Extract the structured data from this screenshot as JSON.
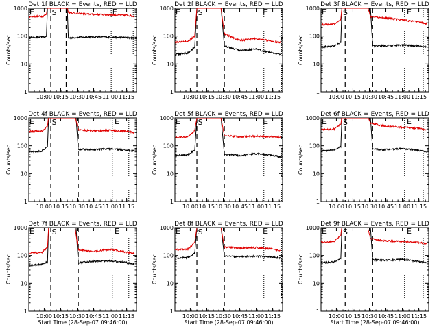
{
  "figure": {
    "background": "#ffffff",
    "colors": {
      "events": "#000000",
      "lld": "#e00000",
      "axis": "#000000"
    },
    "common": {
      "ylabel": "Counts/sec",
      "xlabel": "Start Time (28-Sep-07 09:46:00)",
      "ylog": true,
      "ylim": [
        1,
        1000
      ],
      "yticks": [
        1,
        10,
        100,
        1000
      ],
      "xticks": [
        "10:00",
        "10:15",
        "10:30",
        "10:45",
        "11:00",
        "11:15"
      ],
      "marker_s": "S",
      "marker_e": "E"
    }
  },
  "chart_data": [
    {
      "type": "line",
      "title": "Det 1f BLACK = Events, RED = LLD",
      "xlim": [
        "09:46",
        "11:24"
      ],
      "xlabel": "",
      "ylabel": "Counts/sec",
      "series": [
        {
          "name": "Events",
          "color": "#000000",
          "points": [
            [
              "09:46",
              90
            ],
            [
              "09:58",
              92
            ],
            [
              "10:02",
              95
            ],
            [
              "10:03",
              1200
            ],
            [
              "10:21",
              1200
            ],
            [
              "10:22",
              85
            ],
            [
              "10:30",
              90
            ],
            [
              "10:45",
              95
            ],
            [
              "11:00",
              92
            ],
            [
              "11:15",
              88
            ],
            [
              "11:22",
              86
            ]
          ]
        },
        {
          "name": "LLD",
          "color": "#e00000",
          "points": [
            [
              "09:46",
              500
            ],
            [
              "09:58",
              510
            ],
            [
              "10:02",
              600
            ],
            [
              "10:03",
              1200
            ],
            [
              "10:21",
              1200
            ],
            [
              "10:22",
              700
            ],
            [
              "10:30",
              650
            ],
            [
              "10:45",
              600
            ],
            [
              "11:00",
              580
            ],
            [
              "11:15",
              560
            ],
            [
              "11:22",
              520
            ]
          ]
        }
      ],
      "dashed_lines_at": [
        "10:06",
        "10:20"
      ],
      "dotted_lines_at": [
        "11:01",
        "11:21"
      ],
      "s_label_at": "10:07",
      "e_label_at": "11:02"
    },
    {
      "type": "line",
      "title": "Det 2f BLACK = Events, RED = LLD",
      "xlim": [
        "09:46",
        "11:24"
      ],
      "xlabel": "",
      "ylabel": "Counts/sec",
      "series": [
        {
          "name": "Events",
          "color": "#000000",
          "points": [
            [
              "09:46",
              22
            ],
            [
              "09:58",
              25
            ],
            [
              "10:04",
              40
            ],
            [
              "10:06",
              1200
            ],
            [
              "10:28",
              1200
            ],
            [
              "10:31",
              45
            ],
            [
              "10:45",
              30
            ],
            [
              "11:00",
              34
            ],
            [
              "11:15",
              25
            ],
            [
              "11:22",
              22
            ]
          ]
        },
        {
          "name": "LLD",
          "color": "#e00000",
          "points": [
            [
              "09:46",
              60
            ],
            [
              "09:58",
              65
            ],
            [
              "10:04",
              100
            ],
            [
              "10:06",
              1200
            ],
            [
              "10:28",
              1200
            ],
            [
              "10:31",
              120
            ],
            [
              "10:45",
              70
            ],
            [
              "11:00",
              80
            ],
            [
              "11:15",
              65
            ],
            [
              "11:22",
              58
            ]
          ]
        }
      ],
      "dashed_lines_at": [
        "10:06",
        "10:31"
      ],
      "dotted_lines_at": [
        "11:07",
        "11:23"
      ],
      "s_label_at": "10:07",
      "e_label_at": "11:06"
    },
    {
      "type": "line",
      "title": "Det 3f BLACK = Events, RED = LLD",
      "xlim": [
        "09:46",
        "11:24"
      ],
      "xlabel": "",
      "ylabel": "Counts/sec",
      "series": [
        {
          "name": "Events",
          "color": "#000000",
          "points": [
            [
              "09:46",
              40
            ],
            [
              "09:58",
              45
            ],
            [
              "10:04",
              60
            ],
            [
              "10:05",
              1200
            ],
            [
              "10:31",
              1200
            ],
            [
              "10:33",
              45
            ],
            [
              "10:45",
              45
            ],
            [
              "11:00",
              48
            ],
            [
              "11:15",
              44
            ],
            [
              "11:22",
              40
            ]
          ]
        },
        {
          "name": "LLD",
          "color": "#e00000",
          "points": [
            [
              "09:46",
              260
            ],
            [
              "09:58",
              270
            ],
            [
              "10:04",
              400
            ],
            [
              "10:05",
              1200
            ],
            [
              "10:28",
              1200
            ],
            [
              "10:31",
              500
            ],
            [
              "10:45",
              450
            ],
            [
              "11:00",
              380
            ],
            [
              "11:15",
              320
            ],
            [
              "11:22",
              280
            ]
          ]
        }
      ],
      "dashed_lines_at": [
        "10:08",
        "10:33"
      ],
      "dotted_lines_at": [
        "11:02",
        "11:19"
      ],
      "s_label_at": "10:06",
      "e_label_at": "11:04"
    },
    {
      "type": "line",
      "title": "Det 4f BLACK = Events, RED = LLD",
      "xlim": [
        "09:46",
        "11:24"
      ],
      "xlabel": "",
      "ylabel": "Counts/sec",
      "series": [
        {
          "name": "Events",
          "color": "#000000",
          "points": [
            [
              "09:46",
              60
            ],
            [
              "09:58",
              65
            ],
            [
              "10:03",
              90
            ],
            [
              "10:04",
              1200
            ],
            [
              "10:29",
              1200
            ],
            [
              "10:31",
              75
            ],
            [
              "10:45",
              72
            ],
            [
              "11:00",
              78
            ],
            [
              "11:15",
              70
            ],
            [
              "11:22",
              65
            ]
          ]
        },
        {
          "name": "LLD",
          "color": "#e00000",
          "points": [
            [
              "09:46",
              330
            ],
            [
              "09:58",
              340
            ],
            [
              "10:03",
              500
            ],
            [
              "10:04",
              1200
            ],
            [
              "10:28",
              1200
            ],
            [
              "10:31",
              380
            ],
            [
              "10:45",
              340
            ],
            [
              "11:00",
              360
            ],
            [
              "11:15",
              330
            ],
            [
              "11:22",
              300
            ]
          ]
        }
      ],
      "dashed_lines_at": [
        "10:06",
        "10:31"
      ],
      "dotted_lines_at": [
        "11:02",
        "11:17"
      ],
      "s_label_at": "10:07",
      "e_label_at": "11:04"
    },
    {
      "type": "line",
      "title": "Det 5f BLACK = Events, RED = LLD",
      "xlim": [
        "09:46",
        "11:24"
      ],
      "xlabel": "",
      "ylabel": "Counts/sec",
      "series": [
        {
          "name": "Events",
          "color": "#000000",
          "points": [
            [
              "09:46",
              45
            ],
            [
              "09:58",
              48
            ],
            [
              "10:04",
              70
            ],
            [
              "10:06",
              1200
            ],
            [
              "10:28",
              1200
            ],
            [
              "10:31",
              50
            ],
            [
              "10:45",
              45
            ],
            [
              "11:00",
              52
            ],
            [
              "11:15",
              45
            ],
            [
              "11:22",
              40
            ]
          ]
        },
        {
          "name": "LLD",
          "color": "#e00000",
          "points": [
            [
              "09:46",
              200
            ],
            [
              "09:58",
              210
            ],
            [
              "10:04",
              350
            ],
            [
              "10:06",
              1200
            ],
            [
              "10:28",
              1200
            ],
            [
              "10:31",
              230
            ],
            [
              "10:45",
              210
            ],
            [
              "11:00",
              220
            ],
            [
              "11:15",
              210
            ],
            [
              "11:22",
              200
            ]
          ]
        }
      ],
      "dashed_lines_at": [
        "10:06",
        "10:31"
      ],
      "dotted_lines_at": [
        "11:07",
        "11:23"
      ],
      "s_label_at": "10:07",
      "e_label_at": "11:06"
    },
    {
      "type": "line",
      "title": "Det 6f BLACK = Events, RED = LLD",
      "xlim": [
        "09:46",
        "11:24"
      ],
      "xlabel": "",
      "ylabel": "Counts/sec",
      "series": [
        {
          "name": "Events",
          "color": "#000000",
          "points": [
            [
              "09:46",
              65
            ],
            [
              "09:58",
              70
            ],
            [
              "10:04",
              95
            ],
            [
              "10:05",
              1200
            ],
            [
              "10:31",
              1200
            ],
            [
              "10:33",
              75
            ],
            [
              "10:45",
              72
            ],
            [
              "11:00",
              80
            ],
            [
              "11:15",
              68
            ],
            [
              "11:22",
              62
            ]
          ]
        },
        {
          "name": "LLD",
          "color": "#e00000",
          "points": [
            [
              "09:46",
              380
            ],
            [
              "09:58",
              400
            ],
            [
              "10:04",
              600
            ],
            [
              "10:05",
              1200
            ],
            [
              "10:28",
              1200
            ],
            [
              "10:31",
              650
            ],
            [
              "10:45",
              500
            ],
            [
              "11:00",
              460
            ],
            [
              "11:15",
              420
            ],
            [
              "11:22",
              380
            ]
          ]
        }
      ],
      "dashed_lines_at": [
        "10:08",
        "10:33"
      ],
      "dotted_lines_at": [
        "11:02",
        "11:19"
      ],
      "s_label_at": "10:06",
      "e_label_at": "11:04"
    },
    {
      "type": "line",
      "title": "Det 7f BLACK = Events, RED = LLD",
      "xlim": [
        "09:46",
        "11:24"
      ],
      "xlabel": "Start Time (28-Sep-07 09:46:00)",
      "ylabel": "Counts/sec",
      "series": [
        {
          "name": "Events",
          "color": "#000000",
          "points": [
            [
              "09:46",
              45
            ],
            [
              "09:58",
              48
            ],
            [
              "10:03",
              60
            ],
            [
              "10:04",
              1200
            ],
            [
              "10:29",
              1200
            ],
            [
              "10:31",
              55
            ],
            [
              "10:45",
              62
            ],
            [
              "11:00",
              65
            ],
            [
              "11:15",
              55
            ],
            [
              "11:22",
              50
            ]
          ]
        },
        {
          "name": "LLD",
          "color": "#e00000",
          "points": [
            [
              "09:46",
              120
            ],
            [
              "09:58",
              130
            ],
            [
              "10:03",
              200
            ],
            [
              "10:04",
              1200
            ],
            [
              "10:28",
              1200
            ],
            [
              "10:31",
              160
            ],
            [
              "10:45",
              140
            ],
            [
              "11:00",
              165
            ],
            [
              "11:15",
              130
            ],
            [
              "11:22",
              120
            ]
          ]
        }
      ],
      "dashed_lines_at": [
        "10:06",
        "10:31"
      ],
      "dotted_lines_at": [
        "11:02",
        "11:17"
      ],
      "s_label_at": "10:07",
      "e_label_at": "11:04"
    },
    {
      "type": "line",
      "title": "Det 8f BLACK = Events, RED = LLD",
      "xlim": [
        "09:46",
        "11:24"
      ],
      "xlabel": "Start Time (28-Sep-07 09:46:00)",
      "ylabel": "Counts/sec",
      "series": [
        {
          "name": "Events",
          "color": "#000000",
          "points": [
            [
              "09:46",
              80
            ],
            [
              "09:58",
              85
            ],
            [
              "10:04",
              120
            ],
            [
              "10:06",
              1200
            ],
            [
              "10:28",
              1200
            ],
            [
              "10:31",
              95
            ],
            [
              "10:45",
              90
            ],
            [
              "11:00",
              95
            ],
            [
              "11:15",
              88
            ],
            [
              "11:22",
              80
            ]
          ]
        },
        {
          "name": "LLD",
          "color": "#e00000",
          "points": [
            [
              "09:46",
              160
            ],
            [
              "09:58",
              170
            ],
            [
              "10:04",
              280
            ],
            [
              "10:06",
              1200
            ],
            [
              "10:28",
              1200
            ],
            [
              "10:31",
              200
            ],
            [
              "10:45",
              180
            ],
            [
              "11:00",
              190
            ],
            [
              "11:15",
              170
            ],
            [
              "11:22",
              150
            ]
          ]
        }
      ],
      "dashed_lines_at": [
        "10:06",
        "10:31"
      ],
      "dotted_lines_at": [
        "11:07",
        "11:23"
      ],
      "s_label_at": "10:07",
      "e_label_at": "11:06"
    },
    {
      "type": "line",
      "title": "Det 9f BLACK = Events, RED = LLD",
      "xlim": [
        "09:46",
        "11:24"
      ],
      "xlabel": "Start Time (28-Sep-07 09:46:00)",
      "ylabel": "Counts/sec",
      "series": [
        {
          "name": "Events",
          "color": "#000000",
          "points": [
            [
              "09:46",
              55
            ],
            [
              "09:58",
              58
            ],
            [
              "10:04",
              80
            ],
            [
              "10:05",
              1200
            ],
            [
              "10:31",
              1200
            ],
            [
              "10:33",
              70
            ],
            [
              "10:45",
              68
            ],
            [
              "11:00",
              72
            ],
            [
              "11:15",
              60
            ],
            [
              "11:22",
              55
            ]
          ]
        },
        {
          "name": "LLD",
          "color": "#e00000",
          "points": [
            [
              "09:46",
              300
            ],
            [
              "09:58",
              320
            ],
            [
              "10:04",
              500
            ],
            [
              "10:05",
              1200
            ],
            [
              "10:28",
              1200
            ],
            [
              "10:31",
              400
            ],
            [
              "10:45",
              330
            ],
            [
              "11:00",
              320
            ],
            [
              "11:15",
              290
            ],
            [
              "11:22",
              270
            ]
          ]
        }
      ],
      "dashed_lines_at": [
        "10:08",
        "10:33"
      ],
      "dotted_lines_at": [
        "11:02",
        "11:19"
      ],
      "s_label_at": "10:06",
      "e_label_at": "11:04"
    }
  ]
}
